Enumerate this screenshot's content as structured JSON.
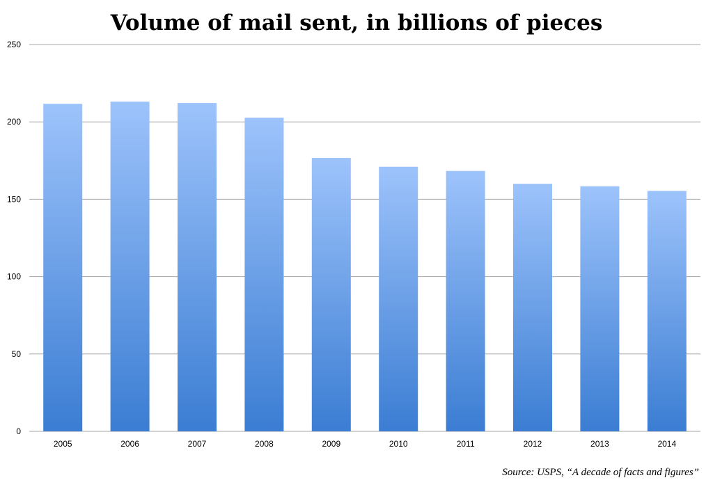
{
  "chart_data": {
    "type": "bar",
    "title": "Volume of mail sent, in billions of pieces",
    "xlabel": "",
    "ylabel": "",
    "categories": [
      "2005",
      "2006",
      "2007",
      "2008",
      "2009",
      "2010",
      "2011",
      "2012",
      "2013",
      "2014"
    ],
    "values": [
      211.7,
      213.1,
      212.2,
      202.7,
      176.7,
      171.0,
      168.3,
      160.0,
      158.4,
      155.4
    ],
    "ylim": [
      0,
      250
    ],
    "yticks": [
      "0",
      "50",
      "100",
      "150",
      "200",
      "250"
    ],
    "grid": true,
    "legend": "none",
    "bar_color_top": "#9dc3fb",
    "bar_color_bottom": "#3b7dd3"
  },
  "source_note": "Source: USPS, “A decade of facts and figures”"
}
